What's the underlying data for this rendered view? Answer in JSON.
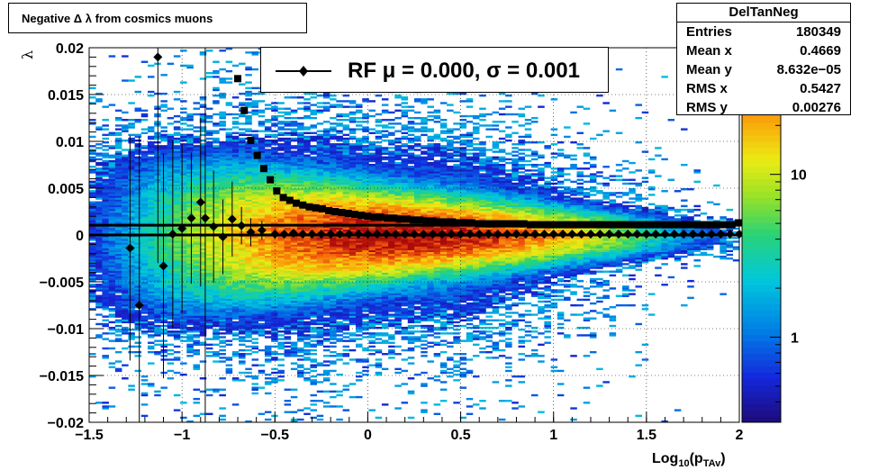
{
  "title": "Negative Δ λ from cosmics muons",
  "stats": {
    "name": "DelTanNeg",
    "rows": [
      {
        "label": "Entries",
        "value": "180349"
      },
      {
        "label": "Mean x",
        "value": "0.4669"
      },
      {
        "label": "Mean y",
        "value": "8.632e−05"
      },
      {
        "label": "RMS x",
        "value": "0.5427"
      },
      {
        "label": "RMS y",
        "value": "0.00276"
      }
    ]
  },
  "legend": {
    "text": "RF μ =  0.000, σ =   0.001"
  },
  "chart_data": {
    "type": "heatmap",
    "xlabel": "Log10(pTAv)",
    "xlabel_main": "Log",
    "xlabel_sub1": "10",
    "xlabel_mid": "(p",
    "xlabel_sub2": "TAv",
    "xlabel_end": ")",
    "ylabel": "λ",
    "xlim": [
      -1.5,
      2
    ],
    "ylim": [
      -0.02,
      0.02
    ],
    "grid": true,
    "x_ticks": [
      -1.5,
      -1,
      -0.5,
      0,
      0.5,
      1,
      1.5,
      2
    ],
    "x_tick_labels": [
      "−1.5",
      "−1",
      "−0.5",
      "0",
      "0.5",
      "1",
      "1.5",
      "2"
    ],
    "y_ticks": [
      -0.02,
      -0.015,
      -0.01,
      -0.005,
      0,
      0.005,
      0.01,
      0.015,
      0.02
    ],
    "y_tick_labels": [
      "−0.02",
      "−0.015",
      "−0.01",
      "−0.005",
      "0",
      "0.005",
      "0.01",
      "0.015",
      "0.02"
    ],
    "colorbar": {
      "scale": "log",
      "ticks": [
        1,
        10
      ],
      "tick_labels": [
        "1",
        "10"
      ],
      "range": [
        0.3,
        60
      ]
    },
    "hlines": [
      0.0,
      0.00105
    ],
    "sigma_points": {
      "x": [
        -0.7,
        -0.665,
        -0.63,
        -0.595,
        -0.56,
        -0.525,
        -0.49,
        -0.455,
        -0.42,
        -0.385,
        -0.35,
        -0.315,
        -0.28,
        -0.245,
        -0.21,
        -0.175,
        -0.14,
        -0.105,
        -0.07,
        -0.035,
        0.0,
        0.035,
        0.07,
        0.105,
        0.14,
        0.175,
        0.21,
        0.245,
        0.28,
        0.315,
        0.35,
        0.385,
        0.42,
        0.455,
        0.49,
        0.525,
        0.56,
        0.595,
        0.63,
        0.665,
        0.7,
        0.735,
        0.77,
        0.805,
        0.84,
        0.875,
        0.91,
        0.945,
        0.98,
        1.015,
        1.05,
        1.085,
        1.12,
        1.155,
        1.19,
        1.225,
        1.26,
        1.295,
        1.33,
        1.365,
        1.4,
        1.435,
        1.47,
        1.505,
        1.54,
        1.575,
        1.61,
        1.645,
        1.68,
        1.715,
        1.75,
        1.785,
        1.82,
        1.855,
        1.89,
        1.925,
        1.96,
        1.995
      ],
      "y": [
        0.0167,
        0.0133,
        0.0101,
        0.0085,
        0.0071,
        0.0059,
        0.0047,
        0.004,
        0.0037,
        0.0034,
        0.0032,
        0.003,
        0.0029,
        0.0028,
        0.0026,
        0.0025,
        0.0024,
        0.0023,
        0.0022,
        0.0021,
        0.002,
        0.0019,
        0.0019,
        0.0018,
        0.0018,
        0.0017,
        0.0017,
        0.0016,
        0.0016,
        0.0015,
        0.0015,
        0.0014,
        0.0014,
        0.0014,
        0.0013,
        0.0013,
        0.0013,
        0.0012,
        0.0012,
        0.0012,
        0.0012,
        0.0012,
        0.0012,
        0.0012,
        0.0012,
        0.0011,
        0.0011,
        0.0011,
        0.0011,
        0.0011,
        0.0011,
        0.0011,
        0.0011,
        0.0011,
        0.0011,
        0.0011,
        0.0011,
        0.0011,
        0.0011,
        0.0011,
        0.0011,
        0.0011,
        0.0011,
        0.0011,
        0.0011,
        0.0011,
        0.0011,
        0.0011,
        0.0011,
        0.0011,
        0.0011,
        0.0011,
        0.0011,
        0.0011,
        0.0011,
        0.0011,
        0.0011,
        0.0013
      ]
    },
    "mean_points": {
      "x": [
        -1.28,
        -1.23,
        -1.13,
        -1.1,
        -1.05,
        -1.0,
        -0.95,
        -0.9,
        -0.875,
        -0.83,
        -0.78,
        -0.73,
        -0.68,
        -0.63,
        -0.57,
        -0.5,
        -0.45,
        -0.4,
        -0.35,
        -0.3,
        -0.25,
        -0.2,
        -0.15,
        -0.1,
        -0.05,
        0.0,
        0.05,
        0.1,
        0.15,
        0.2,
        0.25,
        0.3,
        0.35,
        0.4,
        0.45,
        0.5,
        0.55,
        0.6,
        0.65,
        0.7,
        0.75,
        0.8,
        0.85,
        0.9,
        0.95,
        1.0,
        1.05,
        1.1,
        1.15,
        1.2,
        1.25,
        1.3,
        1.35,
        1.4,
        1.45,
        1.5,
        1.55,
        1.6,
        1.65,
        1.7,
        1.75,
        1.8,
        1.85,
        1.9,
        1.95,
        2.0
      ],
      "y": [
        -0.0014,
        -0.0075,
        0.019,
        -0.0033,
        0.0001,
        0.0007,
        0.0018,
        0.0035,
        0.0018,
        0.0009,
        -0.0002,
        0.0017,
        0.001,
        0.0003,
        0.0005,
        0.0001,
        0.0001,
        0.0002,
        0.0001,
        0.0001,
        0.0001,
        0.0001,
        0.0001,
        0.0001,
        0.0001,
        0.0001,
        0.0001,
        0.0001,
        0.0001,
        0.0001,
        0.0001,
        0.0001,
        0.0001,
        0.0001,
        0.0001,
        0.0001,
        0.0001,
        0.0001,
        0.0001,
        0.0001,
        0.0001,
        0.0001,
        0.0001,
        0.0001,
        0.0001,
        0.0001,
        0.0001,
        0.0001,
        0.0001,
        0.0001,
        0.0001,
        0.0001,
        0.0001,
        0.0001,
        0.0001,
        0.0001,
        0.0001,
        0.0001,
        0.0001,
        0.0001,
        0.0001,
        0.0001,
        0.0001,
        0.0001,
        0.0001,
        0.0001
      ],
      "err": [
        0.012,
        0.018,
        0.022,
        0.012,
        0.01,
        0.009,
        0.007,
        0.009,
        0.028,
        0.006,
        0.004,
        0.004,
        0.002,
        0.0015,
        0.001,
        0.0005,
        0.0004,
        0.0003,
        0.0002,
        0.0002,
        0.0001,
        0.0001,
        0.0001,
        0.0001,
        0.0001,
        0.0001,
        0.0001,
        0.0001,
        0.0001,
        0.0001,
        0.0001,
        0.0001,
        0.0001,
        0.0001,
        0.0001,
        0.0001,
        0.0001,
        0.0001,
        0.0001,
        0.0001,
        0.0001,
        0.0001,
        0.0001,
        0.0001,
        0.0001,
        0.0001,
        0.0001,
        0.0001,
        0.0001,
        0.0001,
        0.0001,
        0.0001,
        0.0001,
        0.0001,
        0.0001,
        0.0001,
        0.0001,
        0.0001,
        0.0001,
        0.0001,
        0.0001,
        0.0001,
        0.0001,
        0.0001,
        0.0001,
        0.0001
      ]
    }
  }
}
